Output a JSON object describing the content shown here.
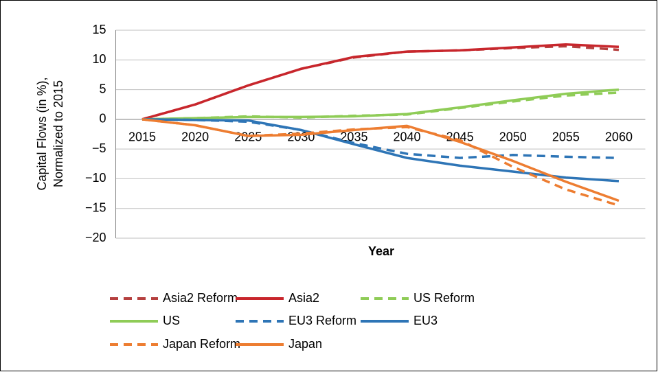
{
  "chart_data": {
    "type": "line",
    "ylabel": [
      "Capital Flows (in %),",
      "Normalized to 2015"
    ],
    "xlabel": "Year",
    "categories": [
      "2015",
      "2020",
      "2025",
      "2030",
      "2035",
      "2040",
      "2045",
      "2050",
      "2055",
      "2060"
    ],
    "ylim": [
      -20,
      15
    ],
    "yticks": [
      {
        "value": -20,
        "label": "−20"
      },
      {
        "value": -15,
        "label": "−15"
      },
      {
        "value": -10,
        "label": "−10"
      },
      {
        "value": -5,
        "label": "−5"
      },
      0,
      5,
      10,
      15
    ],
    "grid": true,
    "legend": "bottom",
    "series": [
      {
        "name": "Asia2 Reform",
        "color": "#b5403f",
        "dashed": true,
        "values": [
          0,
          2.5,
          5.7,
          8.5,
          10.4,
          11.4,
          11.6,
          12.0,
          12.3,
          11.7
        ]
      },
      {
        "name": "Asia2",
        "color": "#c8262c",
        "dashed": false,
        "values": [
          0,
          2.5,
          5.7,
          8.5,
          10.5,
          11.4,
          11.6,
          12.1,
          12.6,
          12.2
        ]
      },
      {
        "name": "US Reform",
        "color": "#8fcc57",
        "dashed": true,
        "values": [
          0,
          0.2,
          0.5,
          0.3,
          0.6,
          0.8,
          1.9,
          3.0,
          4.0,
          4.5
        ]
      },
      {
        "name": "US",
        "color": "#8fcc57",
        "dashed": false,
        "values": [
          0,
          0.2,
          0.4,
          0.4,
          0.5,
          0.9,
          2.0,
          3.2,
          4.3,
          5.0
        ]
      },
      {
        "name": "EU3 Reform",
        "color": "#2e75b6",
        "dashed": true,
        "values": [
          0,
          -0.1,
          -0.4,
          -1.8,
          -4.0,
          -5.8,
          -6.5,
          -6.0,
          -6.3,
          -6.5
        ]
      },
      {
        "name": "EU3",
        "color": "#2e75b6",
        "dashed": false,
        "values": [
          0,
          -0.1,
          -0.2,
          -1.8,
          -4.2,
          -6.5,
          -7.8,
          -8.8,
          -9.8,
          -10.4
        ]
      },
      {
        "name": "Japan Reform",
        "color": "#ed7d31",
        "dashed": true,
        "values": [
          0,
          -1.0,
          -2.8,
          -2.4,
          -1.7,
          -1.3,
          -3.5,
          -8.0,
          -11.8,
          -14.5
        ]
      },
      {
        "name": "Japan",
        "color": "#ed7d31",
        "dashed": false,
        "values": [
          0,
          -1.0,
          -2.8,
          -2.6,
          -1.8,
          -1.1,
          -3.8,
          -7.0,
          -10.5,
          -13.7
        ]
      }
    ]
  }
}
